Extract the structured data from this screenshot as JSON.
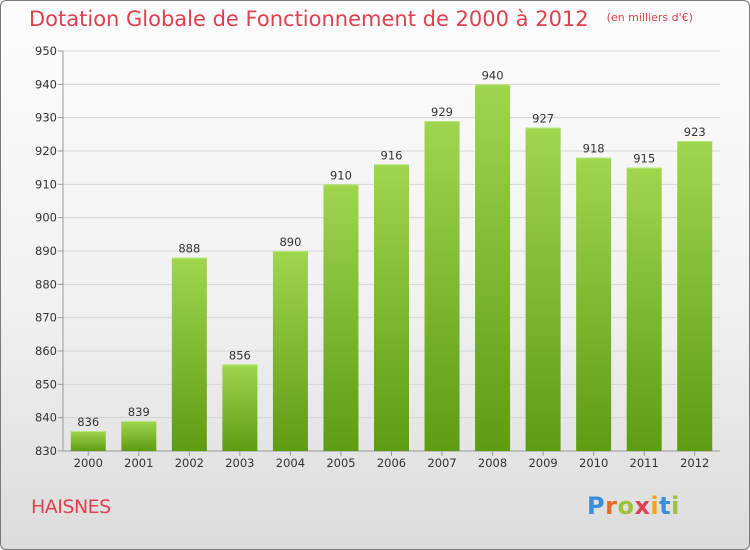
{
  "title": "Dotation Globale de Fonctionnement de 2000 à 2012",
  "subtitle": "(en milliers d'€)",
  "commune": "HAISNES",
  "logo": {
    "text": "Proxiti",
    "letter_colors": [
      "#3b8fd6",
      "#e86a2a",
      "#9ac33c",
      "#e0404f",
      "#f2a614",
      "#3b8fd6",
      "#9ac33c"
    ]
  },
  "colors": {
    "title": "#e0404f",
    "bar_top": "#9fd64e",
    "bar_bottom": "#5e9c12",
    "grid": "#d6d6d6"
  },
  "chart_data": {
    "type": "bar",
    "title": "Dotation Globale de Fonctionnement de 2000 à 2012",
    "subtitle": "(en milliers d'€)",
    "categories": [
      "2000",
      "2001",
      "2002",
      "2003",
      "2004",
      "2005",
      "2006",
      "2007",
      "2008",
      "2009",
      "2010",
      "2011",
      "2012"
    ],
    "values": [
      836,
      839,
      888,
      856,
      890,
      910,
      916,
      929,
      940,
      927,
      918,
      915,
      923
    ],
    "ylim": [
      830,
      950
    ],
    "yticks": [
      830,
      840,
      850,
      860,
      870,
      880,
      890,
      900,
      910,
      920,
      930,
      940,
      950
    ],
    "grid": true,
    "data_labels": true
  }
}
